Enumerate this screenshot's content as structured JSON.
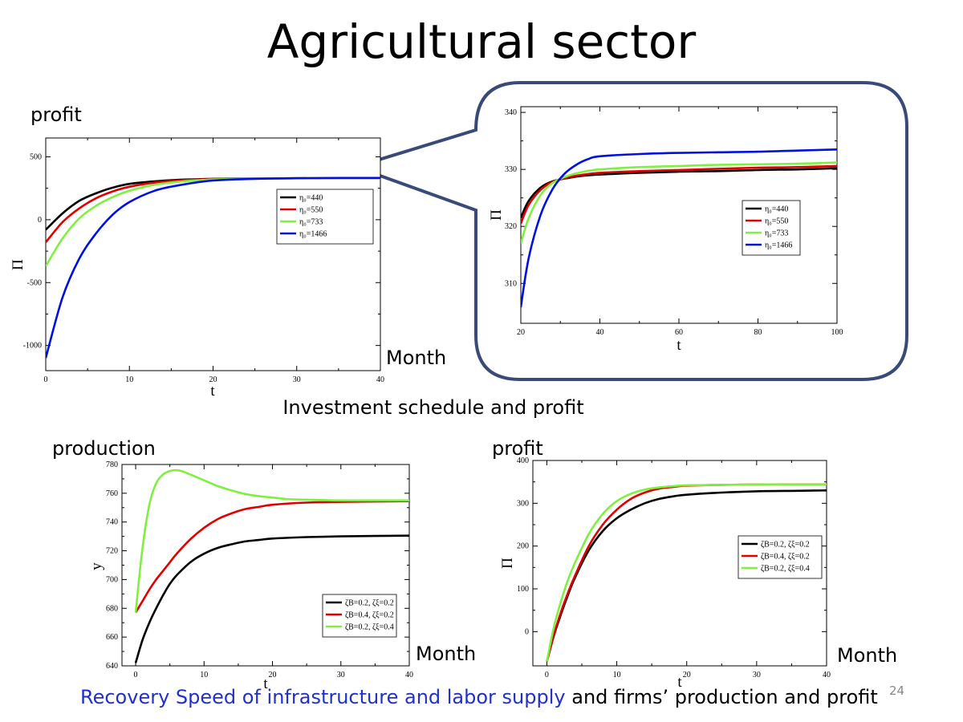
{
  "slide": {
    "title": "Agricultural sector",
    "labels": {
      "top_left_ylabel": "profit",
      "top_left_month": "Month",
      "mid_caption": "Investment schedule and profit",
      "bottom_left_ylabel": "production",
      "bottom_left_month": "Month",
      "bottom_right_ylabel": "profit",
      "bottom_right_month": "Month"
    },
    "bottom_caption": {
      "highlight": "Recovery Speed of infrastructure and labor supply",
      "rest": " and firms’ production and profit"
    },
    "page_number": "24"
  },
  "colors": {
    "black": "#000000",
    "red": "#e00000",
    "green": "#80f040",
    "blue": "#0010e0",
    "callout_border": "#3a4a78"
  },
  "chart_data": [
    {
      "id": "top-left",
      "type": "line",
      "xlabel": "t",
      "ylabel": "Π",
      "xlim": [
        0,
        40
      ],
      "ylim": [
        -1200,
        650
      ],
      "xticks": [
        0,
        10,
        20,
        30,
        40
      ],
      "yticks": [
        -1000,
        -500,
        0,
        500
      ],
      "legend_placement": "center-right",
      "series": [
        {
          "name": "η₀=440",
          "color": "#000000",
          "x": [
            0,
            2,
            4,
            6,
            8,
            10,
            13,
            16,
            20,
            25,
            30,
            35,
            40
          ],
          "y": [
            -80,
            50,
            150,
            210,
            255,
            285,
            305,
            318,
            325,
            328,
            330,
            330,
            330
          ]
        },
        {
          "name": "η₀=550",
          "color": "#e00000",
          "x": [
            0,
            2,
            4,
            6,
            8,
            10,
            13,
            16,
            20,
            25,
            30,
            35,
            40
          ],
          "y": [
            -180,
            -20,
            90,
            170,
            225,
            262,
            295,
            313,
            323,
            328,
            330,
            330,
            330
          ]
        },
        {
          "name": "η₀=733",
          "color": "#80f040",
          "x": [
            0,
            2,
            4,
            6,
            8,
            10,
            13,
            16,
            20,
            25,
            30,
            35,
            40
          ],
          "y": [
            -370,
            -150,
            10,
            110,
            180,
            230,
            278,
            303,
            320,
            327,
            330,
            330,
            330
          ]
        },
        {
          "name": "η₀=1466",
          "color": "#0010e0",
          "x": [
            0,
            2,
            4,
            6,
            8,
            10,
            13,
            16,
            20,
            25,
            30,
            35,
            40
          ],
          "y": [
            -1100,
            -620,
            -310,
            -110,
            40,
            140,
            230,
            275,
            312,
            325,
            330,
            332,
            332
          ]
        }
      ]
    },
    {
      "id": "zoom",
      "type": "line",
      "xlabel": "t",
      "ylabel": "Π",
      "xlim": [
        20,
        100
      ],
      "ylim": [
        303,
        341
      ],
      "xticks": [
        20,
        40,
        60,
        80,
        100
      ],
      "yticks": [
        310,
        320,
        330,
        340
      ],
      "legend_placement": "center-right",
      "series": [
        {
          "name": "η₀=440",
          "color": "#000000",
          "x": [
            20,
            22,
            25,
            28,
            32,
            36,
            40,
            50,
            60,
            70,
            80,
            90,
            100
          ],
          "y": [
            321.5,
            324.5,
            326.8,
            327.9,
            328.5,
            328.9,
            329.1,
            329.4,
            329.6,
            329.7,
            329.9,
            330.0,
            330.2
          ]
        },
        {
          "name": "η₀=550",
          "color": "#e00000",
          "x": [
            20,
            22,
            25,
            28,
            32,
            36,
            40,
            50,
            60,
            70,
            80,
            90,
            100
          ],
          "y": [
            320.5,
            323.8,
            326.4,
            327.8,
            328.6,
            329.1,
            329.4,
            329.7,
            329.9,
            330.1,
            330.3,
            330.4,
            330.6
          ]
        },
        {
          "name": "η₀=733",
          "color": "#80f040",
          "x": [
            20,
            22,
            25,
            28,
            32,
            36,
            40,
            50,
            60,
            70,
            80,
            90,
            100
          ],
          "y": [
            317.0,
            321.5,
            325.5,
            327.6,
            328.9,
            329.6,
            330.0,
            330.4,
            330.6,
            330.8,
            330.9,
            331.0,
            331.2
          ]
        },
        {
          "name": "η₀=1466",
          "color": "#0010e0",
          "x": [
            20,
            22,
            25,
            28,
            31,
            34,
            37,
            40,
            50,
            60,
            70,
            80,
            90,
            100
          ],
          "y": [
            305.8,
            314.5,
            322.0,
            326.5,
            329.2,
            330.8,
            331.8,
            332.3,
            332.7,
            332.9,
            333.0,
            333.1,
            333.3,
            333.5
          ]
        }
      ]
    },
    {
      "id": "bottom-left",
      "type": "line",
      "xlabel": "t",
      "ylabel": "y",
      "xlim": [
        -2,
        40
      ],
      "ylim": [
        640,
        780
      ],
      "xticks": [
        0,
        10,
        20,
        30,
        40
      ],
      "yticks": [
        640,
        660,
        680,
        700,
        720,
        740,
        760,
        780
      ],
      "legend_placement": "bottom-right",
      "series": [
        {
          "name": "ζB=0.2, ζξ=0.2",
          "color": "#000000",
          "x": [
            0,
            1,
            2,
            3,
            4,
            5,
            6,
            8,
            10,
            12,
            14,
            16,
            18,
            20,
            25,
            30,
            35,
            40
          ],
          "y": [
            642,
            658,
            670,
            680,
            689,
            697,
            703,
            712,
            718,
            722,
            724.5,
            726.5,
            727.5,
            728.5,
            729.5,
            730,
            730.3,
            730.5
          ]
        },
        {
          "name": "ζB=0.4, ζξ=0.2",
          "color": "#e00000",
          "x": [
            0,
            1,
            2,
            3,
            4,
            5,
            6,
            8,
            10,
            12,
            14,
            16,
            18,
            20,
            25,
            30,
            35,
            40
          ],
          "y": [
            677,
            685,
            693,
            700,
            706,
            712,
            718,
            728,
            736,
            742,
            746,
            749,
            750.5,
            752,
            753.5,
            754,
            754.3,
            754.5
          ]
        },
        {
          "name": "ζB=0.2, ζξ=0.4",
          "color": "#80f040",
          "x": [
            0,
            1,
            2,
            3,
            4,
            5,
            6,
            7,
            8,
            10,
            12,
            14,
            16,
            18,
            20,
            22,
            25,
            30,
            35,
            40
          ],
          "y": [
            677,
            722,
            752,
            767,
            773,
            775.5,
            776,
            775,
            773,
            769,
            765,
            762,
            759.5,
            758,
            757,
            756,
            755.5,
            755,
            755,
            755
          ]
        }
      ]
    },
    {
      "id": "bottom-right",
      "type": "line",
      "xlabel": "t",
      "ylabel": "Π",
      "xlim": [
        -2,
        40
      ],
      "ylim": [
        -80,
        400
      ],
      "xticks": [
        0,
        10,
        20,
        30,
        40
      ],
      "yticks": [
        0,
        100,
        200,
        300,
        400
      ],
      "legend_placement": "center-right",
      "series": [
        {
          "name": "ζB=0.2, ζξ=0.2",
          "color": "#000000",
          "x": [
            0,
            1,
            2,
            3,
            4,
            6,
            8,
            10,
            12,
            14,
            16,
            18,
            20,
            25,
            30,
            35,
            40
          ],
          "y": [
            -70,
            -10,
            40,
            85,
            125,
            190,
            235,
            265,
            285,
            300,
            310,
            316,
            320,
            325,
            328,
            329,
            330
          ]
        },
        {
          "name": "ζB=0.4, ζξ=0.2",
          "color": "#e00000",
          "x": [
            0,
            1,
            2,
            3,
            4,
            6,
            8,
            10,
            12,
            14,
            16,
            18,
            20,
            25,
            30,
            35,
            40
          ],
          "y": [
            -70,
            -8,
            45,
            90,
            130,
            200,
            250,
            285,
            310,
            325,
            334,
            338,
            341,
            343,
            344,
            344,
            344
          ]
        },
        {
          "name": "ζB=0.2, ζξ=0.4",
          "color": "#80f040",
          "x": [
            0,
            1,
            2,
            3,
            4,
            6,
            8,
            10,
            12,
            14,
            16,
            18,
            20,
            25,
            30,
            35,
            40
          ],
          "y": [
            -70,
            10,
            70,
            120,
            160,
            228,
            275,
            305,
            322,
            332,
            337,
            340,
            342,
            343,
            344,
            344,
            344
          ]
        }
      ]
    }
  ]
}
